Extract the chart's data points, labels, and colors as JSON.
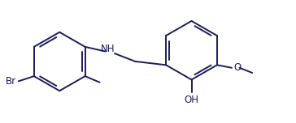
{
  "bg_color": "#ffffff",
  "bond_color": "#1c1c5a",
  "bond_lw": 1.4,
  "text_color": "#1c1c5a",
  "font_size": 8.5,
  "figsize": [
    3.64,
    1.52
  ],
  "dpi": 100,
  "xlim": [
    0.0,
    10.5
  ],
  "ylim": [
    0.0,
    4.2
  ]
}
